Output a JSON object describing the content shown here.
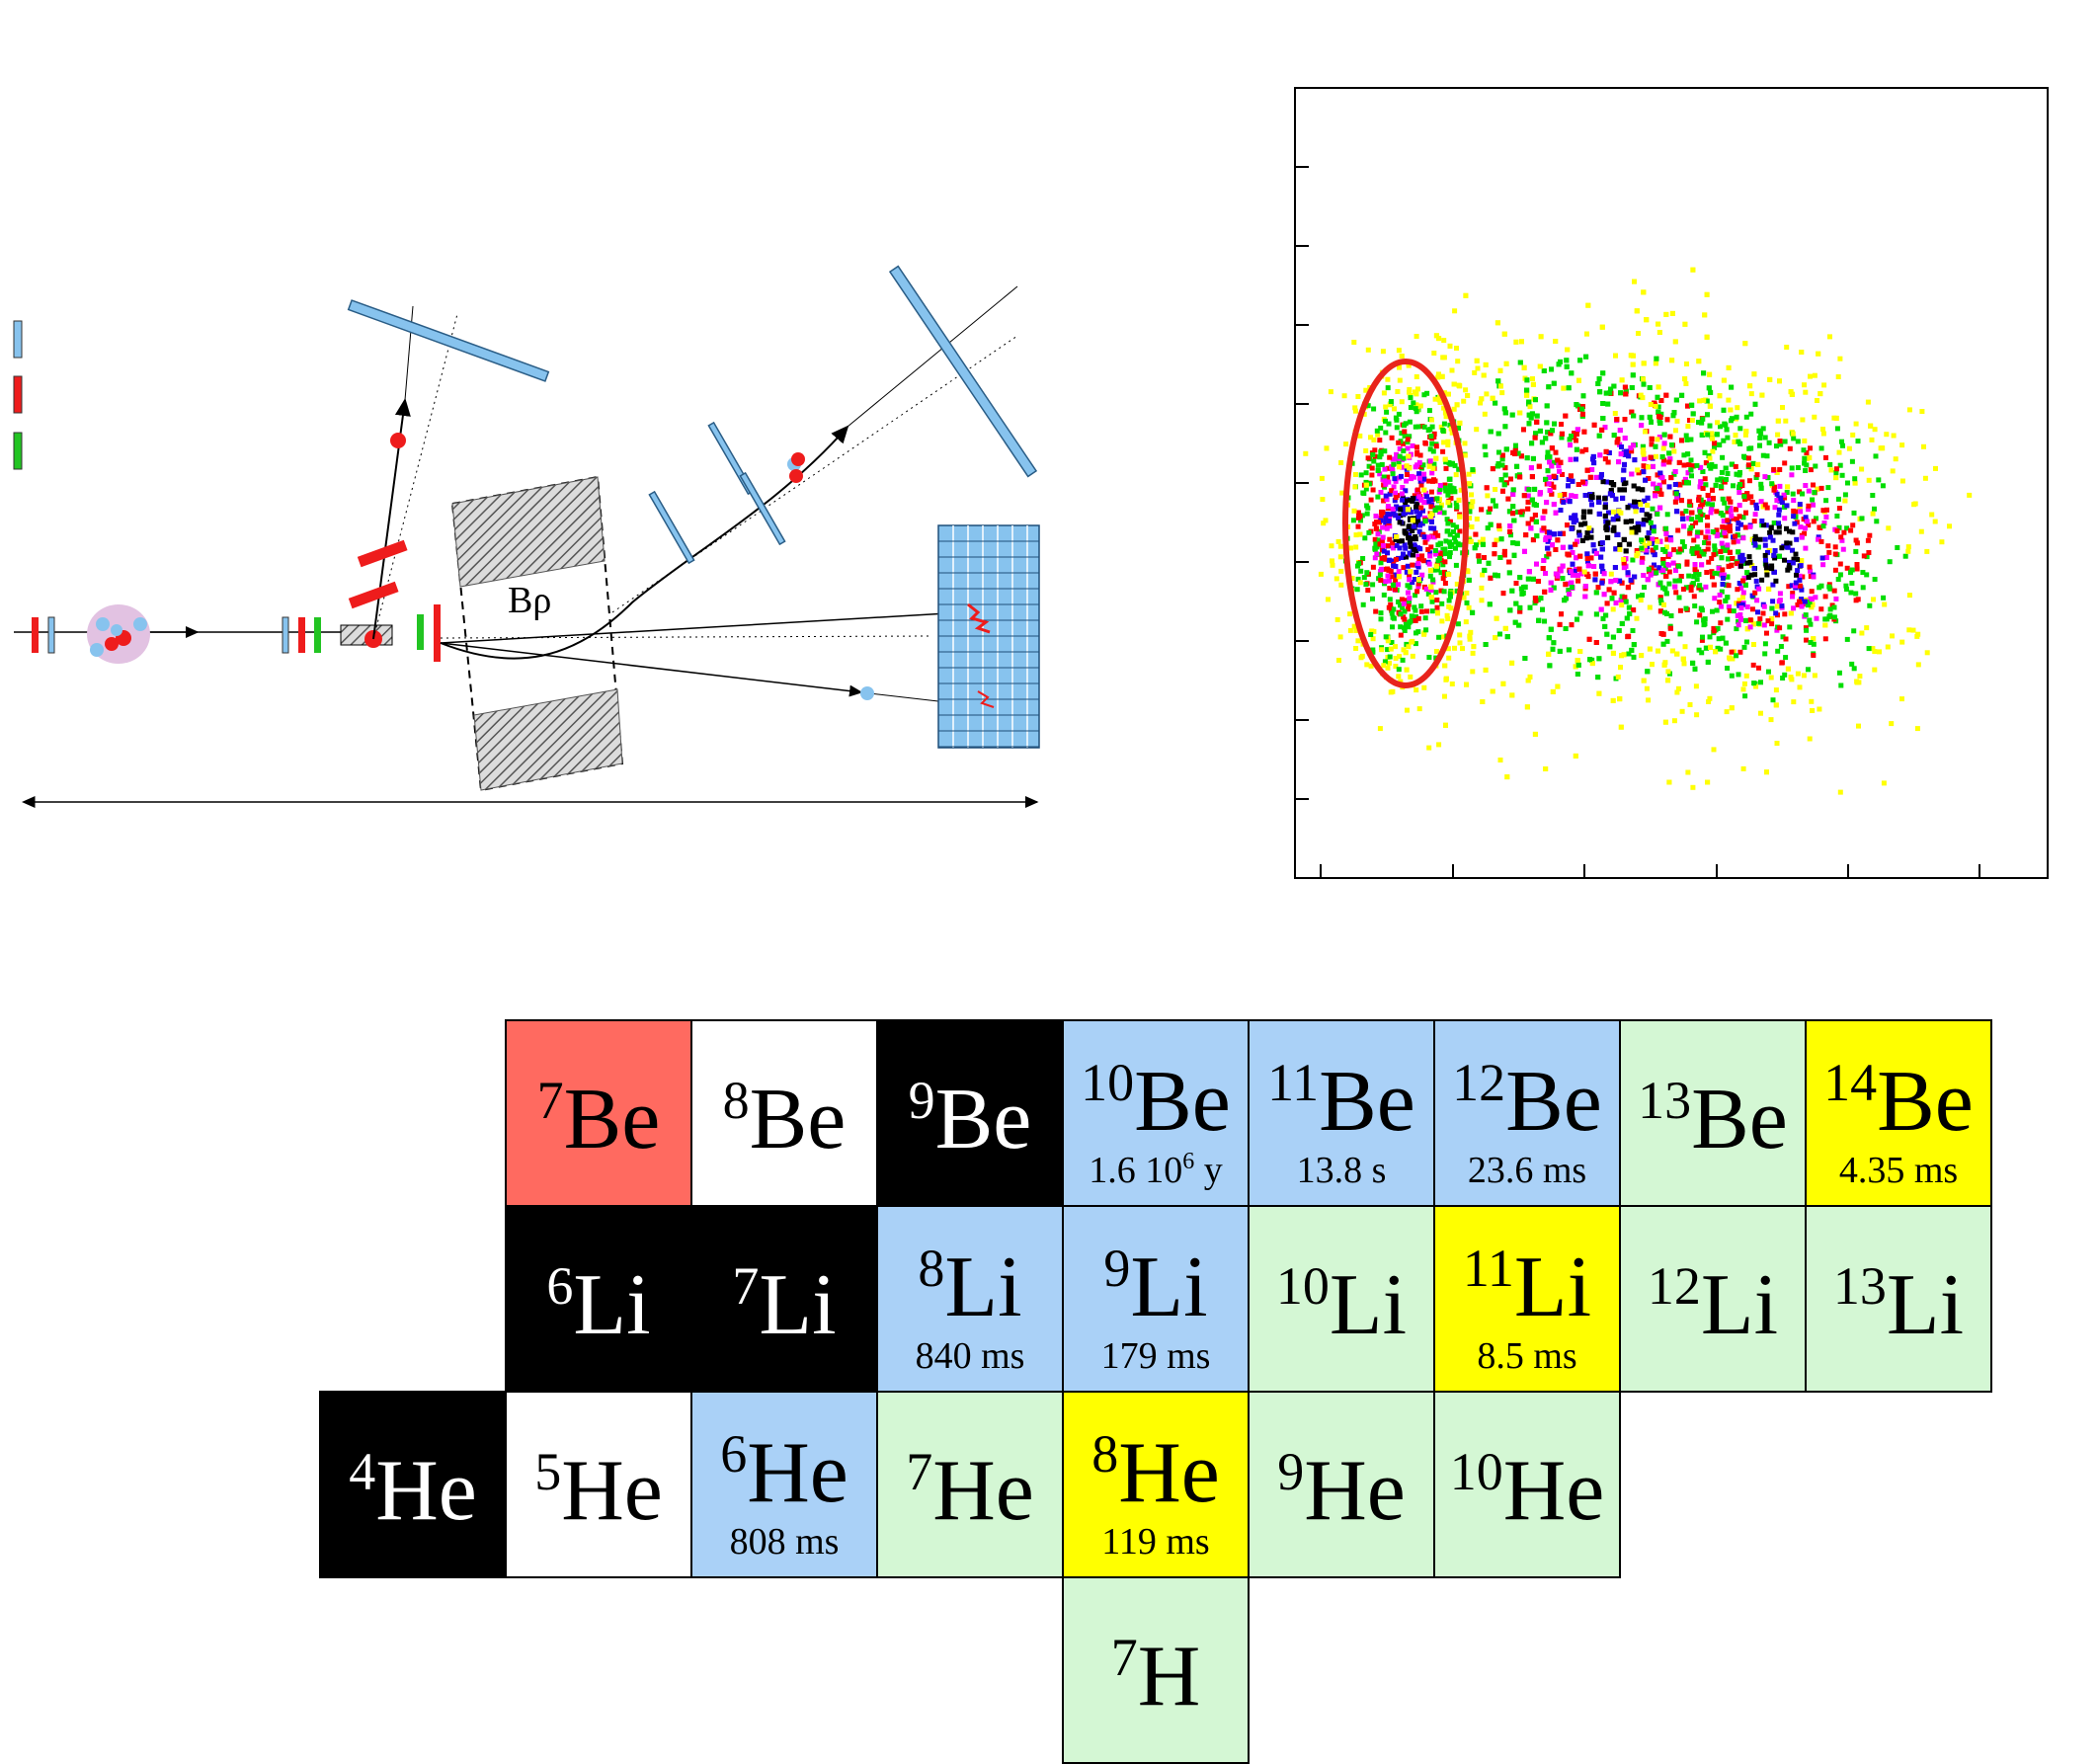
{
  "setup": {
    "magnet_label": "Bρ",
    "colors": {
      "blue": "#87c3ee",
      "red": "#ee1c1c",
      "green": "#22c422",
      "hatch": "#555555",
      "halo": "#e2c2e2"
    }
  },
  "plot": {
    "description_colors": [
      "#ffff00",
      "#00dd00",
      "#ff0000",
      "#ff00ff",
      "#2200ee",
      "#000000"
    ],
    "gate_color": "#e8241c"
  },
  "chart": {
    "cells": [
      {
        "mass": "7",
        "el": "Be",
        "halflife": "",
        "fill": "#ff6a60",
        "dark": false,
        "col": 1,
        "row": 0
      },
      {
        "mass": "8",
        "el": "Be",
        "halflife": "",
        "fill": "#ffffff",
        "dark": false,
        "col": 2,
        "row": 0
      },
      {
        "mass": "9",
        "el": "Be",
        "halflife": "",
        "fill": "#000000",
        "dark": true,
        "col": 3,
        "row": 0
      },
      {
        "mass": "10",
        "el": "Be",
        "halflife": "1.6 10",
        "hl_exp": "6",
        "hl_unit": " y",
        "fill": "#aad1f7",
        "dark": false,
        "col": 4,
        "row": 0
      },
      {
        "mass": "11",
        "el": "Be",
        "halflife": "13.8 s",
        "fill": "#aad1f7",
        "dark": false,
        "col": 5,
        "row": 0
      },
      {
        "mass": "12",
        "el": "Be",
        "halflife": "23.6 ms",
        "fill": "#aad1f7",
        "dark": false,
        "col": 6,
        "row": 0
      },
      {
        "mass": "13",
        "el": "Be",
        "halflife": "",
        "fill": "#d4f7d4",
        "dark": false,
        "col": 7,
        "row": 0
      },
      {
        "mass": "14",
        "el": "Be",
        "halflife": "4.35 ms",
        "fill": "#ffff00",
        "dark": false,
        "col": 8,
        "row": 0
      },
      {
        "mass": "6",
        "el": "Li",
        "halflife": "",
        "fill": "#000000",
        "dark": true,
        "col": 1,
        "row": 1
      },
      {
        "mass": "7",
        "el": "Li",
        "halflife": "",
        "fill": "#000000",
        "dark": true,
        "col": 2,
        "row": 1
      },
      {
        "mass": "8",
        "el": "Li",
        "halflife": "840 ms",
        "fill": "#aad1f7",
        "dark": false,
        "col": 3,
        "row": 1
      },
      {
        "mass": "9",
        "el": "Li",
        "halflife": "179 ms",
        "fill": "#aad1f7",
        "dark": false,
        "col": 4,
        "row": 1
      },
      {
        "mass": "10",
        "el": "Li",
        "halflife": "",
        "fill": "#d4f7d4",
        "dark": false,
        "col": 5,
        "row": 1
      },
      {
        "mass": "11",
        "el": "Li",
        "halflife": "8.5 ms",
        "fill": "#ffff00",
        "dark": false,
        "col": 6,
        "row": 1
      },
      {
        "mass": "12",
        "el": "Li",
        "halflife": "",
        "fill": "#d4f7d4",
        "dark": false,
        "col": 7,
        "row": 1
      },
      {
        "mass": "13",
        "el": "Li",
        "halflife": "",
        "fill": "#d4f7d4",
        "dark": false,
        "col": 8,
        "row": 1
      },
      {
        "mass": "4",
        "el": "He",
        "halflife": "",
        "fill": "#000000",
        "dark": true,
        "col": 0,
        "row": 2
      },
      {
        "mass": "5",
        "el": "He",
        "halflife": "",
        "fill": "#ffffff",
        "dark": false,
        "col": 1,
        "row": 2
      },
      {
        "mass": "6",
        "el": "He",
        "halflife": "808 ms",
        "fill": "#aad1f7",
        "dark": false,
        "col": 2,
        "row": 2
      },
      {
        "mass": "7",
        "el": "He",
        "halflife": "",
        "fill": "#d4f7d4",
        "dark": false,
        "col": 3,
        "row": 2
      },
      {
        "mass": "8",
        "el": "He",
        "halflife": "119 ms",
        "fill": "#ffff00",
        "dark": false,
        "col": 4,
        "row": 2
      },
      {
        "mass": "9",
        "el": "He",
        "halflife": "",
        "fill": "#d4f7d4",
        "dark": false,
        "col": 5,
        "row": 2
      },
      {
        "mass": "10",
        "el": "He",
        "halflife": "",
        "fill": "#d4f7d4",
        "dark": false,
        "col": 6,
        "row": 2
      },
      {
        "mass": "7",
        "el": "H",
        "halflife": "",
        "fill": "#d4f7d4",
        "dark": false,
        "col": 4,
        "row": 3
      }
    ]
  }
}
